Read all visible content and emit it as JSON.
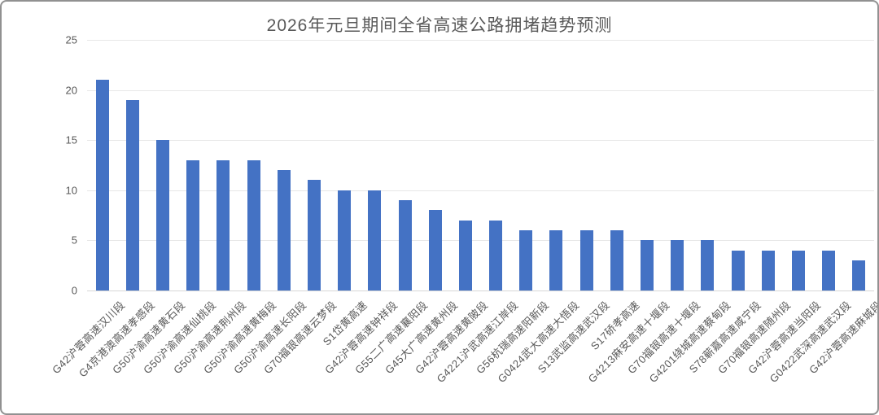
{
  "chart_data": {
    "type": "bar",
    "title": "2026年元旦期间全省高速公路拥堵趋势预测",
    "categories": [
      "G42沪蓉高速汉川段",
      "G4京港澳高速孝感段",
      "G50沪渝高速黄石段",
      "G50沪渝高速仙桃段",
      "G50沪渝高速荆州段",
      "G50沪渝高速黄梅段",
      "G50沪渝高速长阳段",
      "G70福银高速云梦段",
      "S1岱黄高速",
      "G42沪蓉高速钟祥段",
      "G55二广高速襄阳段",
      "G45大广高速黄州段",
      "G42沪蓉高速黄陂段",
      "G4221沪武高速江岸段",
      "G56杭瑞高速阳新段",
      "G0424武大高速大悟段",
      "S13武监高速武汉段",
      "S17硚孝高速",
      "G4213麻安高速十堰段",
      "G70福银高速十堰段",
      "G4201绕城高速蔡甸段",
      "S78蕲嘉高速咸宁段",
      "G70福银高速随州段",
      "G42沪蓉高速当阳段",
      "G0422武深高速武汉段",
      "G42沪蓉高速麻城段"
    ],
    "values": [
      21,
      19,
      15,
      13,
      13,
      13,
      12,
      11,
      10,
      10,
      9,
      8,
      7,
      7,
      6,
      6,
      6,
      6,
      5,
      5,
      5,
      4,
      4,
      4,
      4,
      3
    ],
    "xlabel": "",
    "ylabel": "",
    "ylim": [
      0,
      25
    ],
    "yticks": [
      0,
      5,
      10,
      15,
      20,
      25
    ],
    "grid": "horizontal",
    "legend": "none",
    "bar_color": "#4472C4",
    "gridline_color": "#E7E7E7",
    "axis_line_color": "#D6D6D6",
    "text_color": "#595959",
    "title_color": "#595959",
    "frame_border_color": "#919191",
    "background_color": "#FFFFFF"
  }
}
